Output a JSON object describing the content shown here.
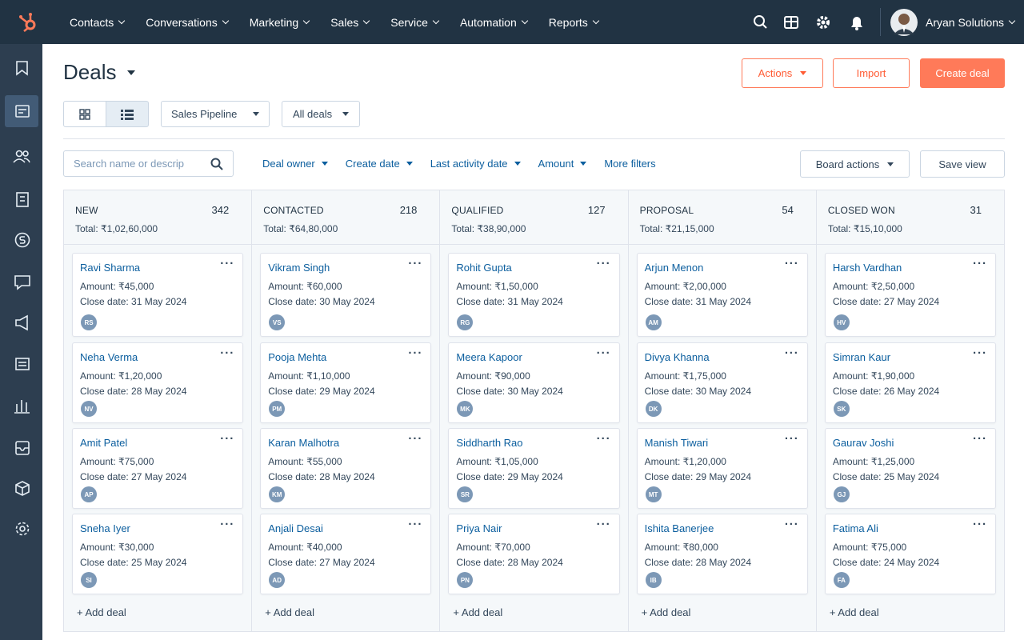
{
  "nav": {
    "items": [
      "Contacts",
      "Conversations",
      "Marketing",
      "Sales",
      "Service",
      "Automation",
      "Reports"
    ],
    "account": "Aryan Solutions"
  },
  "header": {
    "title": "Deals",
    "actions": "Actions",
    "import": "Import",
    "create": "Create deal"
  },
  "view": {
    "pipeline": "Sales Pipeline",
    "filter": "All deals"
  },
  "filters": {
    "search_placeholder": "Search name or descrip",
    "items": [
      "Deal owner",
      "Create date",
      "Last activity date",
      "Amount"
    ],
    "more": "More filters",
    "board_actions": "Board actions",
    "save_view": "Save view"
  },
  "board": {
    "add_deal": "+ Add deal",
    "columns": [
      {
        "name": "NEW",
        "count": 342,
        "total": "Total: ₹1,02,60,000",
        "cards": [
          {
            "name": "Ravi Sharma",
            "amount": "Amount: ₹45,000",
            "close": "Close date: 31 May 2024",
            "initials": "RS"
          },
          {
            "name": "Neha Verma",
            "amount": "Amount: ₹1,20,000",
            "close": "Close date: 28 May 2024",
            "initials": "NV"
          },
          {
            "name": "Amit Patel",
            "amount": "Amount: ₹75,000",
            "close": "Close date: 27 May 2024",
            "initials": "AP"
          },
          {
            "name": "Sneha Iyer",
            "amount": "Amount: ₹30,000",
            "close": "Close date: 25 May 2024",
            "initials": "SI"
          }
        ]
      },
      {
        "name": "CONTACTED",
        "count": 218,
        "total": "Total: ₹64,80,000",
        "cards": [
          {
            "name": "Vikram Singh",
            "amount": "Amount: ₹60,000",
            "close": "Close date: 30 May 2024",
            "initials": "VS"
          },
          {
            "name": "Pooja Mehta",
            "amount": "Amount: ₹1,10,000",
            "close": "Close date: 29 May 2024",
            "initials": "PM"
          },
          {
            "name": "Karan Malhotra",
            "amount": "Amount: ₹55,000",
            "close": "Close date: 28 May 2024",
            "initials": "KM"
          },
          {
            "name": "Anjali Desai",
            "amount": "Amount: ₹40,000",
            "close": "Close date: 27 May 2024",
            "initials": "AD"
          }
        ]
      },
      {
        "name": "QUALIFIED",
        "count": 127,
        "total": "Total: ₹38,90,000",
        "cards": [
          {
            "name": "Rohit Gupta",
            "amount": "Amount: ₹1,50,000",
            "close": "Close date: 31 May 2024",
            "initials": "RG"
          },
          {
            "name": "Meera Kapoor",
            "amount": "Amount: ₹90,000",
            "close": "Close date: 30 May 2024",
            "initials": "MK"
          },
          {
            "name": "Siddharth Rao",
            "amount": "Amount: ₹1,05,000",
            "close": "Close date: 29 May 2024",
            "initials": "SR"
          },
          {
            "name": "Priya Nair",
            "amount": "Amount: ₹70,000",
            "close": "Close date: 28 May 2024",
            "initials": "PN"
          }
        ]
      },
      {
        "name": "PROPOSAL",
        "count": 54,
        "total": "Total: ₹21,15,000",
        "cards": [
          {
            "name": "Arjun Menon",
            "amount": "Amount: ₹2,00,000",
            "close": "Close date: 31 May 2024",
            "initials": "AM"
          },
          {
            "name": "Divya Khanna",
            "amount": "Amount: ₹1,75,000",
            "close": "Close date: 30 May 2024",
            "initials": "DK"
          },
          {
            "name": "Manish Tiwari",
            "amount": "Amount: ₹1,20,000",
            "close": "Close date: 29 May 2024",
            "initials": "MT"
          },
          {
            "name": "Ishita Banerjee",
            "amount": "Amount: ₹80,000",
            "close": "Close date: 28 May 2024",
            "initials": "IB"
          }
        ]
      },
      {
        "name": "CLOSED WON",
        "count": 31,
        "total": "Total: ₹15,10,000",
        "cards": [
          {
            "name": "Harsh Vardhan",
            "amount": "Amount: ₹2,50,000",
            "close": "Close date: 27 May 2024",
            "initials": "HV"
          },
          {
            "name": "Simran Kaur",
            "amount": "Amount: ₹1,90,000",
            "close": "Close date: 26 May 2024",
            "initials": "SK"
          },
          {
            "name": "Gaurav Joshi",
            "amount": "Amount: ₹1,25,000",
            "close": "Close date: 25 May 2024",
            "initials": "GJ"
          },
          {
            "name": "Fatima Ali",
            "amount": "Amount: ₹75,000",
            "close": "Close date: 24 May 2024",
            "initials": "FA"
          }
        ]
      }
    ]
  }
}
